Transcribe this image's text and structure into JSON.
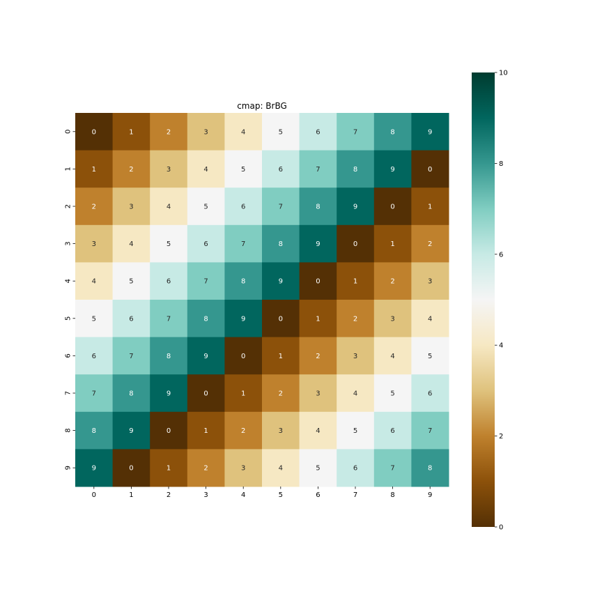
{
  "chart_data": {
    "type": "heatmap",
    "title": "cmap: BrBG",
    "xlabel": "",
    "ylabel": "",
    "x_categories": [
      "0",
      "1",
      "2",
      "3",
      "4",
      "5",
      "6",
      "7",
      "8",
      "9"
    ],
    "y_categories": [
      "0",
      "1",
      "2",
      "3",
      "4",
      "5",
      "6",
      "7",
      "8",
      "9"
    ],
    "values": [
      [
        0,
        1,
        2,
        3,
        4,
        5,
        6,
        7,
        8,
        9
      ],
      [
        1,
        2,
        3,
        4,
        5,
        6,
        7,
        8,
        9,
        0
      ],
      [
        2,
        3,
        4,
        5,
        6,
        7,
        8,
        9,
        0,
        1
      ],
      [
        3,
        4,
        5,
        6,
        7,
        8,
        9,
        0,
        1,
        2
      ],
      [
        4,
        5,
        6,
        7,
        8,
        9,
        0,
        1,
        2,
        3
      ],
      [
        5,
        6,
        7,
        8,
        9,
        0,
        1,
        2,
        3,
        4
      ],
      [
        6,
        7,
        8,
        9,
        0,
        1,
        2,
        3,
        4,
        5
      ],
      [
        7,
        8,
        9,
        0,
        1,
        2,
        3,
        4,
        5,
        6
      ],
      [
        8,
        9,
        0,
        1,
        2,
        3,
        4,
        5,
        6,
        7
      ],
      [
        9,
        0,
        1,
        2,
        3,
        4,
        5,
        6,
        7,
        8
      ]
    ],
    "annotated": true,
    "colormap": "BrBG",
    "vmin": 0,
    "vmax": 10,
    "colorbar": {
      "ticks": [
        0,
        2,
        4,
        6,
        8,
        10
      ],
      "tick_labels": [
        "0",
        "2",
        "4",
        "6",
        "8",
        "10"
      ]
    },
    "grid": false,
    "legend": "none"
  },
  "colors": {
    "brbg_stops": [
      "#543005",
      "#8c510a",
      "#bf812d",
      "#dfc27d",
      "#f6e8c3",
      "#f5f5f5",
      "#c7eae5",
      "#80cdc1",
      "#35978f",
      "#01665e",
      "#003c30"
    ],
    "annotation_light": "#ffffff",
    "annotation_dark": "#262626"
  }
}
